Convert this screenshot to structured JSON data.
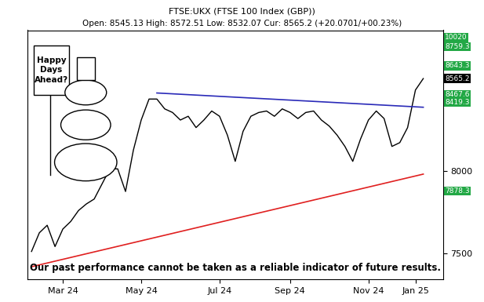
{
  "chart_data": {
    "type": "line",
    "title": "FTSE:UKX (FTSE 100 Index (GBP))",
    "subtitle": "Open: 8545.13 High: 8572.51 Low: 8532.07 Cur: 8565.2 (+20.0701/+00.23%)",
    "categories": [
      null,
      null,
      null,
      null,
      "Mar 24",
      null,
      null,
      null,
      null,
      null,
      null,
      null,
      null,
      null,
      "May 24",
      null,
      null,
      null,
      null,
      null,
      null,
      null,
      null,
      null,
      "Jul 24",
      null,
      null,
      null,
      null,
      null,
      null,
      null,
      null,
      "Sep 24",
      null,
      null,
      null,
      null,
      null,
      null,
      null,
      null,
      null,
      "Nov 24",
      null,
      null,
      null,
      null,
      null,
      "Jan 25",
      null
    ],
    "values": [
      7510,
      7624,
      7670,
      7540,
      7647,
      7693,
      7760,
      7800,
      7830,
      7922,
      8014,
      8014,
      7876,
      8128,
      8312,
      8440,
      8440,
      8380,
      8358,
      8312,
      8335,
      8266,
      8312,
      8367,
      8335,
      8220,
      8060,
      8243,
      8335,
      8358,
      8367,
      8335,
      8380,
      8358,
      8321,
      8358,
      8367,
      8312,
      8275,
      8220,
      8151,
      8060,
      8197,
      8312,
      8367,
      8321,
      8151,
      8174,
      8266,
      8495,
      8565
    ],
    "color": "#000000",
    "ylim": [
      7340,
      8860
    ],
    "yticks": [
      7500,
      8000
    ],
    "grid": false,
    "trend_lines": [
      {
        "x": [
          16,
          50
        ],
        "values": [
          8477,
          8390
        ],
        "color": "#2a2ab8"
      },
      {
        "x": [
          0,
          50
        ],
        "values": [
          7417,
          7982
        ],
        "color": "#e02020"
      }
    ],
    "levels": [
      {
        "value": 8759.3,
        "color": "#22a845"
      },
      {
        "value": 8643.3,
        "color": "#22a845"
      },
      {
        "value": 8565.2,
        "color": "#000000"
      },
      {
        "value": 8467.6,
        "color": "#22a845"
      },
      {
        "value": 8419.3,
        "color": "#22a845"
      },
      {
        "value": 7878.3,
        "color": "#22a845"
      }
    ],
    "target_above": {
      "value": 10020,
      "color": "#22a845"
    },
    "sign_text": "Happy\nDays\nAhead?",
    "footer": "Our past performance cannot be taken as a reliable indicator of future results."
  }
}
